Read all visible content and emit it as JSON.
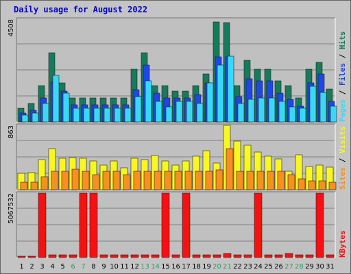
{
  "chart_data": {
    "type": "bar",
    "title": "Daily usage for August 2022",
    "categories": [
      "1",
      "2",
      "3",
      "4",
      "5",
      "6",
      "7",
      "8",
      "9",
      "10",
      "11",
      "12",
      "13",
      "14",
      "15",
      "16",
      "17",
      "18",
      "19",
      "20",
      "21",
      "22",
      "23",
      "24",
      "25",
      "26",
      "27",
      "28",
      "29",
      "30",
      "31"
    ],
    "weekend_days": [
      "6",
      "7",
      "13",
      "14",
      "20",
      "21",
      "27",
      "28"
    ],
    "panels": [
      {
        "id": "hits",
        "max_label": "4508",
        "ymax": 4508,
        "legend": [
          "Pages",
          "Files",
          "Hits"
        ],
        "series": [
          {
            "name": "Hits",
            "color": "#177a5b",
            "values": [
              600,
              820,
              1600,
              3050,
              1700,
              1050,
              1050,
              1050,
              1050,
              1050,
              1050,
              2300,
              3050,
              1600,
              1600,
              1350,
              1350,
              1600,
              2100,
              4400,
              4350,
              1600,
              2700,
              2300,
              2300,
              1800,
              1600,
              1050,
              2300,
              2600,
              1450
            ]
          },
          {
            "name": "Files",
            "color": "#1f46e8",
            "values": [
              400,
              520,
              1050,
              1750,
              1350,
              750,
              750,
              750,
              750,
              750,
              750,
              1400,
              2500,
              1250,
              1050,
              1050,
              1050,
              1200,
              1700,
              2850,
              2850,
              1100,
              1900,
              1800,
              1800,
              1250,
              1000,
              700,
              1700,
              2100,
              900
            ]
          },
          {
            "name": "Pages",
            "color": "#3ad8f8",
            "values": [
              300,
              380,
              800,
              2050,
              1250,
              600,
              600,
              600,
              600,
              600,
              600,
              1100,
              1800,
              900,
              650,
              900,
              900,
              820,
              1700,
              2500,
              2900,
              800,
              1000,
              1050,
              1050,
              900,
              650,
              600,
              1550,
              1300,
              700
            ]
          }
        ]
      },
      {
        "id": "visits",
        "max_label": "863",
        "ymax": 863,
        "legend": [
          "Sites",
          "Visits"
        ],
        "series": [
          {
            "name": "Visits",
            "color": "#f8f820",
            "values": [
              220,
              230,
              400,
              555,
              425,
              430,
              425,
              385,
              335,
              385,
              295,
              425,
              400,
              460,
              385,
              335,
              385,
              450,
              520,
              360,
              863,
              650,
              600,
              505,
              450,
              410,
              250,
              470,
              315,
              335,
              300
            ]
          },
          {
            "name": "Sites",
            "color": "#f89020",
            "values": [
              105,
              105,
              175,
              250,
              250,
              275,
              250,
              200,
              250,
              250,
              200,
              250,
              250,
              250,
              250,
              250,
              250,
              250,
              250,
              270,
              550,
              250,
              250,
              250,
              250,
              250,
              200,
              150,
              120,
              120,
              100
            ]
          }
        ]
      },
      {
        "id": "kbytes",
        "max_label": "5067532",
        "ymax": 5067532,
        "legend": [
          "KBytes"
        ],
        "series": [
          {
            "name": "KBytes",
            "color": "#f81010",
            "values": [
              130000,
              130000,
              5067532,
              220000,
              220000,
              220000,
              5067532,
              5067532,
              190000,
              190000,
              190000,
              220000,
              220000,
              220000,
              5067532,
              220000,
              5067532,
              220000,
              220000,
              220000,
              350000,
              220000,
              220000,
              5067532,
              220000,
              220000,
              350000,
              220000,
              220000,
              5067532,
              220000
            ]
          }
        ]
      }
    ],
    "grid": true
  }
}
